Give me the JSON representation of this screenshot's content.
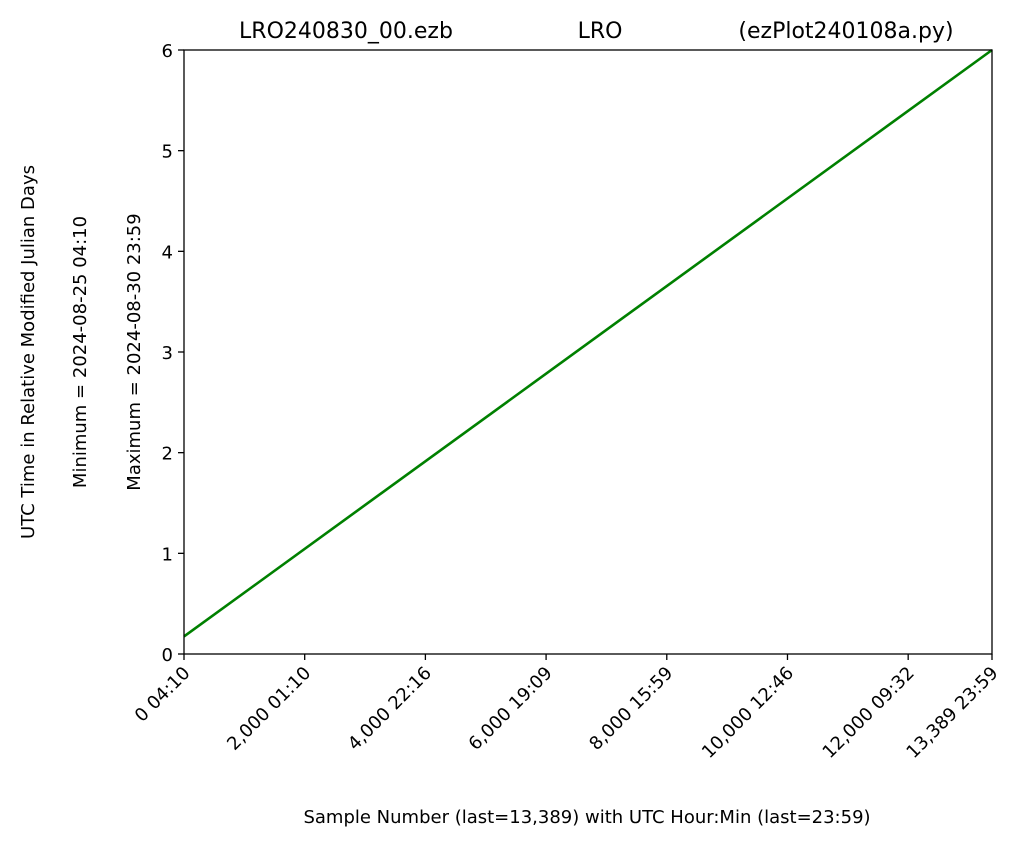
{
  "chart_data": {
    "type": "line",
    "title_parts": [
      "LRO240830_00.ezb",
      "LRO",
      "(ezPlot240108a.py)"
    ],
    "xlabel": "Sample Number (last=13,389) with UTC Hour:Min (last=23:59)",
    "ylabel_lines": [
      "UTC Time in Relative Modified Julian Days",
      "Minimum = 2024-08-25   04:10",
      "Maximum = 2024-08-30   23:59"
    ],
    "xlim": [
      0,
      13389
    ],
    "ylim": [
      0,
      6
    ],
    "x_ticks": [
      {
        "value": 0,
        "label": "0  04:10"
      },
      {
        "value": 2000,
        "label": "2,000  01:10"
      },
      {
        "value": 4000,
        "label": "4,000  22:16"
      },
      {
        "value": 6000,
        "label": "6,000  19:09"
      },
      {
        "value": 8000,
        "label": "8,000  15:59"
      },
      {
        "value": 10000,
        "label": "10,000  12:46"
      },
      {
        "value": 12000,
        "label": "12,000  09:32"
      },
      {
        "value": 13389,
        "label": "13,389  23:59"
      }
    ],
    "y_ticks": [
      0,
      1,
      2,
      3,
      4,
      5,
      6
    ],
    "grid": false,
    "series": [
      {
        "color": "#008000",
        "x": [
          0,
          13389
        ],
        "y": [
          0.174,
          6.0
        ]
      }
    ]
  }
}
